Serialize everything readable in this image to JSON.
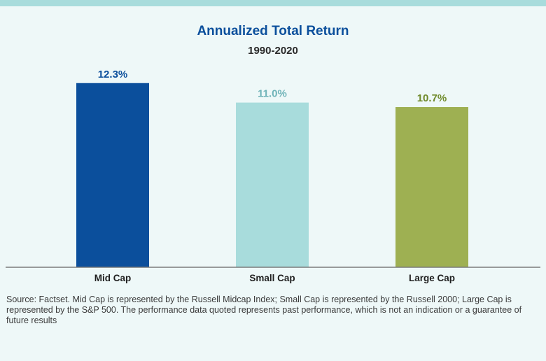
{
  "colors": {
    "title": "#0b4f9c",
    "mid_cap": "#0b4f9c",
    "small_cap": "#a8dcdc",
    "small_cap_label": "#6fb3b8",
    "large_cap": "#9eb052",
    "large_cap_label": "#6f8a2a",
    "band": "#a8dcdc",
    "background": "#eef8f8"
  },
  "chart_data": {
    "type": "bar",
    "title": "Annualized Total Return",
    "subtitle": "1990-2020",
    "categories": [
      "Mid Cap",
      "Small Cap",
      "Large Cap"
    ],
    "values": [
      12.3,
      11.0,
      10.7
    ],
    "value_labels": [
      "12.3%",
      "11.0%",
      "10.7%"
    ],
    "units": "%",
    "ylim": [
      0,
      14
    ],
    "grid": false,
    "legend": "none"
  },
  "source_text": "Source: Factset. Mid Cap is represented by the Russell Midcap Index; Small Cap is represented by the Russell 2000; Large Cap is represented by the S&P 500. The performance data quoted represents past performance, which is not an indication or a guarantee of future results"
}
